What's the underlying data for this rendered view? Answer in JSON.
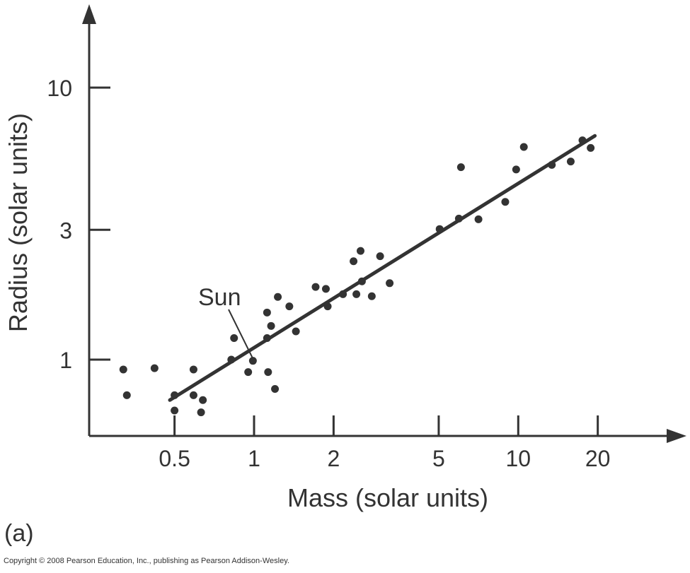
{
  "chart_data": {
    "type": "scatter",
    "title": "",
    "xlabel": "Mass (solar units)",
    "ylabel": "Radius (solar units)",
    "xscale": "log",
    "yscale": "log",
    "xlim": [
      0.3,
      28
    ],
    "ylim": [
      0.55,
      20
    ],
    "xticks": [
      0.5,
      1,
      2,
      5,
      10,
      20
    ],
    "xtick_labels": [
      "0.5",
      "1",
      "2",
      "5",
      "10",
      "20"
    ],
    "yticks": [
      1,
      3,
      10
    ],
    "ytick_labels": [
      "1",
      "3",
      "10"
    ],
    "grid": false,
    "legend": "none",
    "color": "#333333",
    "points": [
      [
        0.32,
        0.92
      ],
      [
        0.33,
        0.74
      ],
      [
        0.42,
        0.93
      ],
      [
        0.5,
        0.74
      ],
      [
        0.5,
        0.65
      ],
      [
        0.59,
        0.92
      ],
      [
        0.59,
        0.74
      ],
      [
        0.63,
        0.64
      ],
      [
        0.64,
        0.71
      ],
      [
        0.82,
        1.0
      ],
      [
        0.84,
        1.2
      ],
      [
        0.95,
        0.9
      ],
      [
        0.99,
        0.99
      ],
      [
        1.12,
        1.2
      ],
      [
        1.12,
        1.49
      ],
      [
        1.13,
        0.9
      ],
      [
        1.16,
        1.33
      ],
      [
        1.2,
        0.78
      ],
      [
        1.23,
        1.7
      ],
      [
        1.36,
        1.57
      ],
      [
        1.44,
        1.27
      ],
      [
        1.71,
        1.85
      ],
      [
        1.87,
        1.82
      ],
      [
        1.9,
        1.57
      ],
      [
        2.17,
        1.74
      ],
      [
        2.38,
        2.3
      ],
      [
        2.44,
        1.74
      ],
      [
        2.53,
        2.51
      ],
      [
        2.56,
        1.94
      ],
      [
        2.79,
        1.71
      ],
      [
        3.0,
        2.4
      ],
      [
        3.26,
        1.91
      ],
      [
        5.04,
        3.02
      ],
      [
        5.96,
        3.3
      ],
      [
        6.07,
        5.1
      ],
      [
        7.07,
        3.28
      ],
      [
        8.93,
        3.8
      ],
      [
        9.82,
        5.0
      ],
      [
        10.5,
        6.05
      ],
      [
        13.4,
        5.2
      ],
      [
        15.8,
        5.35
      ],
      [
        17.5,
        6.4
      ],
      [
        18.8,
        6.0
      ]
    ],
    "fit_line": {
      "x": [
        0.48,
        19.5
      ],
      "y": [
        0.71,
        6.65
      ]
    },
    "annotation": {
      "text": "Sun",
      "x": 1.0,
      "y": 1.0
    },
    "panel_label": "(a)",
    "copyright": "Copyright © 2008 Pearson Education, Inc., publishing as Pearson Addison-Wesley."
  }
}
